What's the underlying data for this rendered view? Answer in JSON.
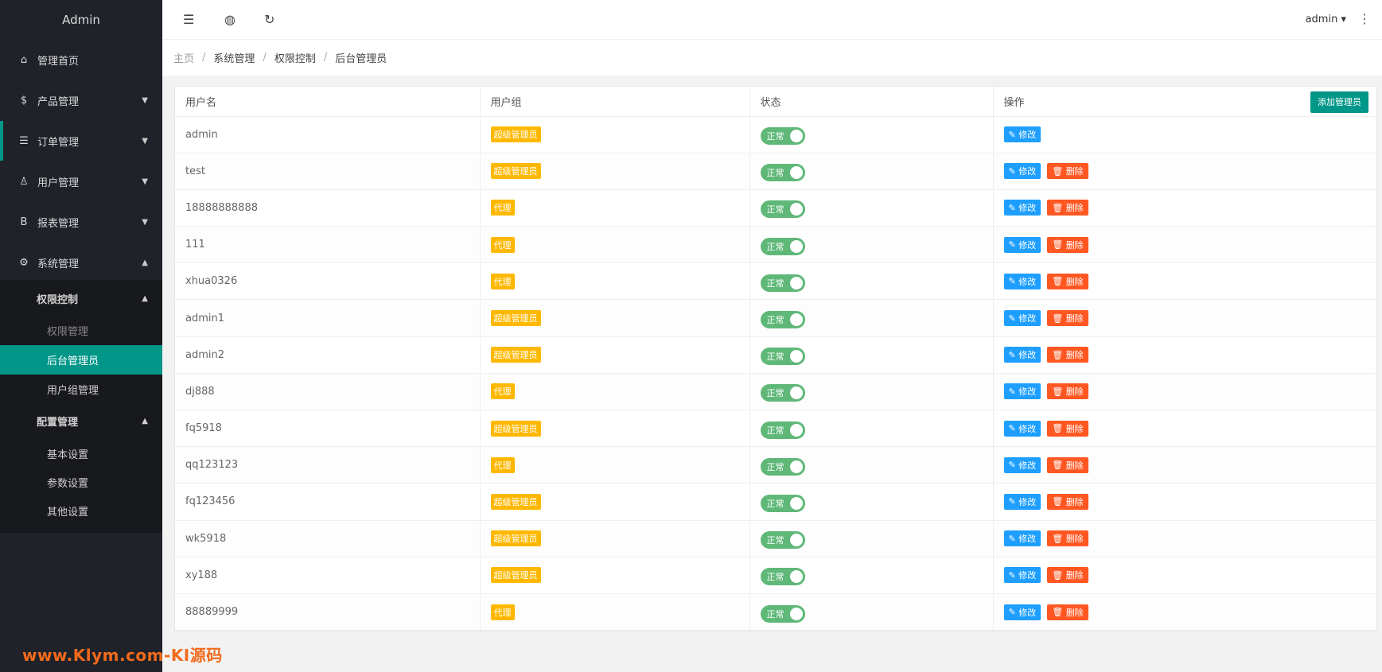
{
  "app_title": "Admin",
  "watermark": "www.Klym.com-KI源码",
  "sidebar": {
    "items": [
      {
        "label": "管理首页",
        "icon": "home-icon",
        "glyph": "⌂",
        "arrow": ""
      },
      {
        "label": "产品管理",
        "icon": "dollar-icon",
        "glyph": "$",
        "arrow": "▼"
      },
      {
        "label": "订单管理",
        "icon": "layers-icon",
        "glyph": "☰",
        "arrow": "▼"
      },
      {
        "label": "用户管理",
        "icon": "user-icon",
        "glyph": "♙",
        "arrow": "▼"
      },
      {
        "label": "报表管理",
        "icon": "b-icon",
        "glyph": "B",
        "arrow": "▼"
      },
      {
        "label": "系统管理",
        "icon": "gear-icon",
        "glyph": "⚙",
        "arrow": "▲"
      }
    ],
    "sub": {
      "group1": "权限控制",
      "group1_arrow": "▲",
      "hidden_item": "权限管理",
      "admins": "后台管理员",
      "usergroups": "用户组管理",
      "group2": "配置管理",
      "group2_arrow": "▲",
      "basic": "基本设置",
      "params": "参数设置",
      "other": "其他设置"
    }
  },
  "topbar": {
    "user": "admin",
    "user_arrow": "▾",
    "more": "⋮"
  },
  "breadcrumb": [
    "主页",
    "系统管理",
    "权限控制",
    "后台管理员"
  ],
  "table": {
    "headers": [
      "用户名",
      "用户组",
      "状态",
      "操作"
    ],
    "add_button": "添加管理员",
    "edit_label": "修改",
    "delete_label": "删除",
    "status_label": "正常",
    "rows": [
      {
        "username": "admin",
        "group": "超级管理员",
        "deletable": false
      },
      {
        "username": "test",
        "group": "超级管理员",
        "deletable": true
      },
      {
        "username": "18888888888",
        "group": "代理",
        "deletable": true
      },
      {
        "username": "111",
        "group": "代理",
        "deletable": true
      },
      {
        "username": "xhua0326",
        "group": "代理",
        "deletable": true
      },
      {
        "username": "admin1",
        "group": "超级管理员",
        "deletable": true
      },
      {
        "username": "admin2",
        "group": "超级管理员",
        "deletable": true
      },
      {
        "username": "dj888",
        "group": "代理",
        "deletable": true
      },
      {
        "username": "fq5918",
        "group": "超级管理员",
        "deletable": true
      },
      {
        "username": "qq123123",
        "group": "代理",
        "deletable": true
      },
      {
        "username": "fq123456",
        "group": "超级管理员",
        "deletable": true
      },
      {
        "username": "wk5918",
        "group": "超级管理员",
        "deletable": true
      },
      {
        "username": "xy188",
        "group": "超级管理员",
        "deletable": true
      },
      {
        "username": "88889999",
        "group": "代理",
        "deletable": true
      }
    ]
  }
}
